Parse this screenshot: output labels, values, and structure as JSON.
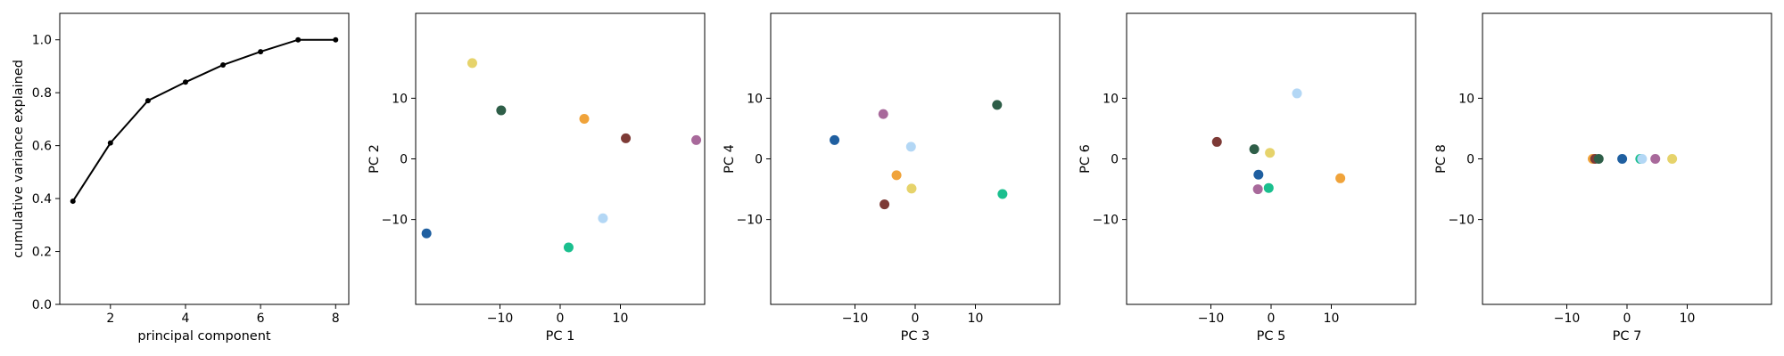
{
  "figure": {
    "panels": [
      {
        "xlabel": "principal component",
        "ylabel": "cumulative variance explained"
      },
      {
        "xlabel": "PC 1",
        "ylabel": "PC 2"
      },
      {
        "xlabel": "PC 3",
        "ylabel": "PC 4"
      },
      {
        "xlabel": "PC 5",
        "ylabel": "PC 6"
      },
      {
        "xlabel": "PC 7",
        "ylabel": "PC 8"
      }
    ]
  },
  "chart_data": [
    {
      "type": "line",
      "xlabel": "principal component",
      "ylabel": "cumulative variance explained",
      "x": [
        1,
        2,
        3,
        4,
        5,
        6,
        7,
        8
      ],
      "y": [
        0.39,
        0.61,
        0.77,
        0.84,
        0.905,
        0.955,
        1.0,
        1.0
      ],
      "xlim": [
        0.65,
        8.35
      ],
      "ylim": [
        0.0,
        1.1
      ],
      "xticks": [
        2,
        4,
        6,
        8
      ],
      "yticks": [
        0.0,
        0.2,
        0.4,
        0.6,
        0.8,
        1.0
      ],
      "yticklabels": [
        "0.0",
        "0.2",
        "0.4",
        "0.6",
        "0.8",
        "1.0"
      ],
      "color": "#000000",
      "grid": false
    },
    {
      "type": "scatter",
      "xlabel": "PC 1",
      "ylabel": "PC 2",
      "xlim": [
        -24,
        24
      ],
      "ylim": [
        -24,
        24
      ],
      "xticks": [
        -10,
        0,
        10
      ],
      "yticks": [
        -10,
        0,
        10
      ],
      "points": [
        {
          "x": -22.2,
          "y": -12.3,
          "color": "#1f5fa0"
        },
        {
          "x": -14.6,
          "y": 15.8,
          "color": "#e6d36b"
        },
        {
          "x": -9.8,
          "y": 8.0,
          "color": "#2e5e48"
        },
        {
          "x": 1.4,
          "y": -14.6,
          "color": "#1abf8e"
        },
        {
          "x": 4.0,
          "y": 6.6,
          "color": "#f0a33a"
        },
        {
          "x": 7.1,
          "y": -9.8,
          "color": "#b3d7f5"
        },
        {
          "x": 10.9,
          "y": 3.4,
          "color": "#7d3a36"
        },
        {
          "x": 22.6,
          "y": 3.1,
          "color": "#a8699b"
        }
      ],
      "grid": false
    },
    {
      "type": "scatter",
      "xlabel": "PC 3",
      "ylabel": "PC 4",
      "xlim": [
        -24,
        24
      ],
      "ylim": [
        -24,
        24
      ],
      "xticks": [
        -10,
        0,
        10
      ],
      "yticks": [
        -10,
        0,
        10
      ],
      "points": [
        {
          "x": -13.4,
          "y": 3.1,
          "color": "#1f5fa0"
        },
        {
          "x": -5.3,
          "y": 7.4,
          "color": "#a8699b"
        },
        {
          "x": -5.1,
          "y": -7.5,
          "color": "#7d3a36"
        },
        {
          "x": -3.1,
          "y": -2.7,
          "color": "#f0a33a"
        },
        {
          "x": -0.7,
          "y": 2.0,
          "color": "#b3d7f5"
        },
        {
          "x": -0.6,
          "y": -4.9,
          "color": "#e6d36b"
        },
        {
          "x": 13.6,
          "y": 8.9,
          "color": "#2e5e48"
        },
        {
          "x": 14.5,
          "y": -5.8,
          "color": "#1abf8e"
        }
      ],
      "grid": false
    },
    {
      "type": "scatter",
      "xlabel": "PC 5",
      "ylabel": "PC 6",
      "xlim": [
        -24,
        24
      ],
      "ylim": [
        -24,
        24
      ],
      "xticks": [
        -10,
        0,
        10
      ],
      "yticks": [
        -10,
        0,
        10
      ],
      "points": [
        {
          "x": -9.0,
          "y": 2.8,
          "color": "#7d3a36"
        },
        {
          "x": -2.8,
          "y": 1.6,
          "color": "#2e5e48"
        },
        {
          "x": -2.1,
          "y": -2.6,
          "color": "#1f5fa0"
        },
        {
          "x": -2.2,
          "y": -5.0,
          "color": "#a8699b"
        },
        {
          "x": -0.4,
          "y": -4.8,
          "color": "#1abf8e"
        },
        {
          "x": -0.2,
          "y": 1.0,
          "color": "#e6d36b"
        },
        {
          "x": 4.3,
          "y": 10.8,
          "color": "#b3d7f5"
        },
        {
          "x": 11.5,
          "y": -3.2,
          "color": "#f0a33a"
        }
      ],
      "grid": false
    },
    {
      "type": "scatter",
      "xlabel": "PC 7",
      "ylabel": "PC 8",
      "xlim": [
        -24,
        24
      ],
      "ylim": [
        -24,
        24
      ],
      "xticks": [
        -10,
        0,
        10
      ],
      "yticks": [
        -10,
        0,
        10
      ],
      "points": [
        {
          "x": -5.7,
          "y": 0.0,
          "color": "#f0a33a"
        },
        {
          "x": -5.3,
          "y": 0.0,
          "color": "#7d3a36"
        },
        {
          "x": -4.7,
          "y": 0.0,
          "color": "#2e5e48"
        },
        {
          "x": -0.8,
          "y": 0.0,
          "color": "#1f5fa0"
        },
        {
          "x": 2.2,
          "y": 0.0,
          "color": "#1abf8e"
        },
        {
          "x": 2.5,
          "y": 0.0,
          "color": "#b3d7f5"
        },
        {
          "x": 4.7,
          "y": 0.0,
          "color": "#a8699b"
        },
        {
          "x": 7.5,
          "y": 0.0,
          "color": "#e6d36b"
        }
      ],
      "grid": false
    }
  ]
}
